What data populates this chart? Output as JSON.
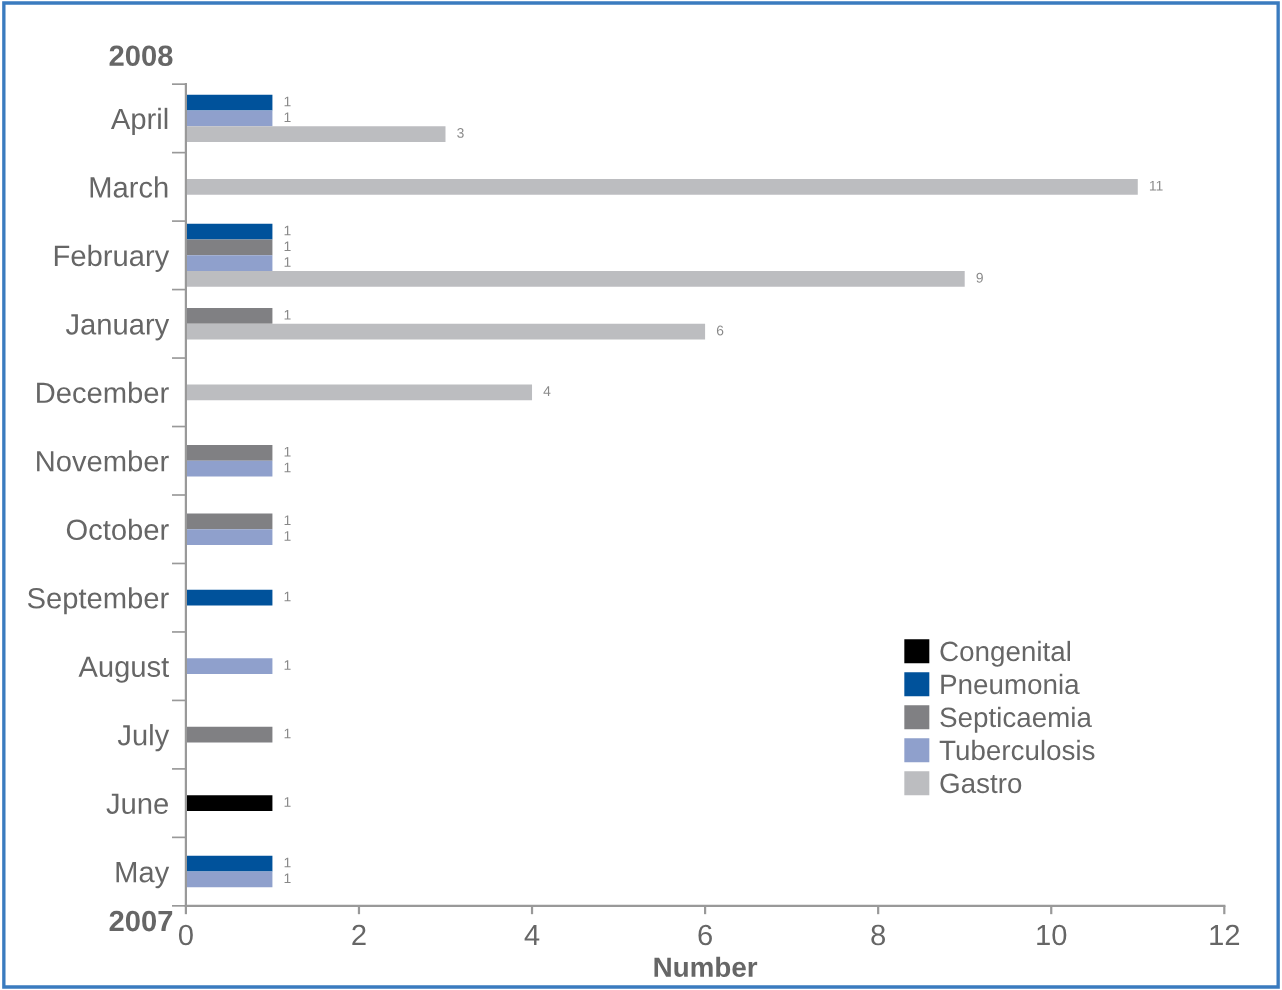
{
  "chart_data": {
    "type": "bar",
    "orientation": "horizontal",
    "xlabel": "Number",
    "categories": [
      "April",
      "March",
      "February",
      "January",
      "December",
      "November",
      "October",
      "September",
      "August",
      "July",
      "June",
      "May"
    ],
    "series": [
      {
        "name": "Congenital",
        "color": "#000000",
        "values": [
          null,
          null,
          null,
          null,
          null,
          null,
          null,
          null,
          null,
          null,
          1,
          null
        ]
      },
      {
        "name": "Pneumonia",
        "color": "#00529b",
        "values": [
          1,
          null,
          1,
          null,
          null,
          null,
          null,
          1,
          null,
          null,
          null,
          1
        ]
      },
      {
        "name": "Septicaemia",
        "color": "#808083",
        "values": [
          null,
          null,
          1,
          1,
          null,
          1,
          1,
          null,
          null,
          1,
          null,
          null
        ]
      },
      {
        "name": "Tuberculosis",
        "color": "#8fa0cc",
        "values": [
          1,
          null,
          1,
          null,
          null,
          1,
          1,
          null,
          1,
          null,
          null,
          1
        ]
      },
      {
        "name": "Gastro",
        "color": "#bcbdc0",
        "values": [
          3,
          11,
          9,
          6,
          4,
          null,
          null,
          null,
          null,
          null,
          null,
          null
        ]
      }
    ],
    "xlim": [
      0,
      12
    ],
    "xticks": [
      0,
      2,
      4,
      6,
      8,
      10,
      12
    ],
    "grid": false,
    "legend": "bottom right",
    "data_labels": true,
    "annotations": [
      "2008",
      "2007"
    ]
  }
}
